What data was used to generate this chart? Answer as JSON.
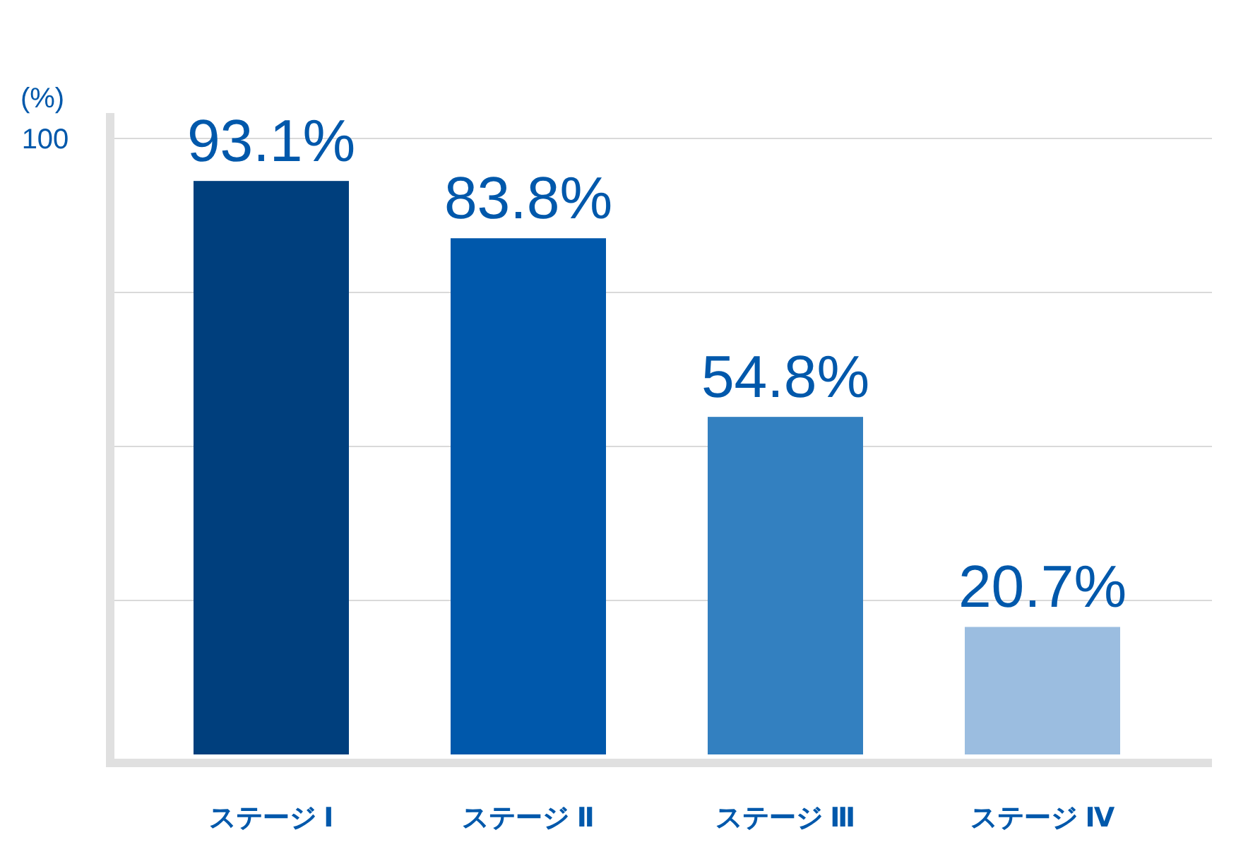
{
  "chart_data": {
    "type": "bar",
    "ylabel": "(%)",
    "categories": [
      "ステージ Ⅰ",
      "ステージ Ⅱ",
      "ステージ Ⅲ",
      "ステージ Ⅳ"
    ],
    "values": [
      93.1,
      83.8,
      54.8,
      20.7
    ],
    "colors": [
      "#003f7d",
      "#0058ab",
      "#3380c0",
      "#9bbde0"
    ],
    "value_labels": [
      "93.1%",
      "83.8%",
      "54.8%",
      "20.7%"
    ],
    "ylim": [
      0,
      100
    ],
    "yticks": [
      {
        "value": 25,
        "label": null
      },
      {
        "value": 50,
        "label": null
      },
      {
        "value": 75,
        "label": null
      },
      100
    ],
    "grid": "y"
  }
}
